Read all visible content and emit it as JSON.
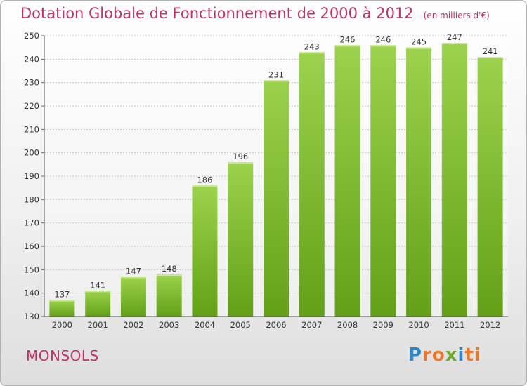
{
  "title": "Dotation Globale de Fonctionnement de 2000 à 2012",
  "unit_note": "(en milliers d'€)",
  "commune": "MONSOLS",
  "logo": {
    "letters": [
      "P",
      "r",
      "o",
      "x",
      "i",
      "t",
      "i"
    ],
    "colors": [
      "#2f86c8",
      "#e8792b",
      "#e8792b",
      "#6aa82a",
      "#2f86c8",
      "#e8792b",
      "#e8792b"
    ]
  },
  "colors": {
    "title": "#c0306a",
    "bar_light": "#9cd24d",
    "bar_dark": "#63a018"
  },
  "chart_data": {
    "type": "bar",
    "title": "Dotation Globale de Fonctionnement de 2000 à 2012",
    "xlabel": "",
    "ylabel": "",
    "categories": [
      "2000",
      "2001",
      "2002",
      "2003",
      "2004",
      "2005",
      "2006",
      "2007",
      "2008",
      "2009",
      "2010",
      "2011",
      "2012"
    ],
    "values": [
      137,
      141,
      147,
      148,
      186,
      196,
      231,
      243,
      246,
      246,
      245,
      247,
      241
    ],
    "ylim": [
      130,
      250
    ],
    "yticks": [
      130,
      140,
      150,
      160,
      170,
      180,
      190,
      200,
      210,
      220,
      230,
      240,
      250
    ],
    "grid": true,
    "legend": "none"
  }
}
